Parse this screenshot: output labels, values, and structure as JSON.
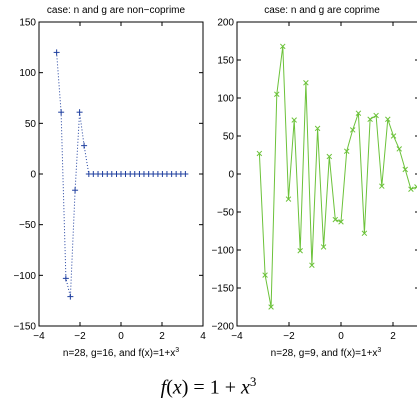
{
  "caption": {
    "fx": "f",
    "x1": "x",
    "rest": ") = 1 + ",
    "x2": "x",
    "exp": "3",
    "open": "("
  },
  "chart_data": [
    {
      "type": "scatter",
      "title": "case: n and g are non−coprime",
      "xlabel_main": "n=28, g=16, and f(x)=1+x",
      "xlabel_sup": "3",
      "xlim": [
        -4,
        4
      ],
      "ylim": [
        -150,
        150
      ],
      "xticks": [
        -4,
        -2,
        0,
        2,
        4
      ],
      "yticks": [
        -150,
        -100,
        -50,
        0,
        50,
        100,
        150
      ],
      "xtick_labels": [
        "−4",
        "−2",
        "0",
        "2",
        "4"
      ],
      "ytick_labels": [
        "−150",
        "−100",
        "−50",
        "0",
        "50",
        "100",
        "150"
      ],
      "marker": "+",
      "line_style": "dotted",
      "color": "#1f3f9f",
      "x": [
        -3.14,
        -2.92,
        -2.69,
        -2.47,
        -2.24,
        -2.02,
        -1.8,
        -1.57,
        -1.35,
        -1.12,
        -0.9,
        -0.67,
        -0.45,
        -0.22,
        0.0,
        0.22,
        0.45,
        0.67,
        0.9,
        1.12,
        1.35,
        1.57,
        1.8,
        2.02,
        2.24,
        2.47,
        2.69,
        2.92,
        3.14
      ],
      "y": [
        120,
        61,
        -103,
        -121,
        -16,
        61,
        28,
        0,
        0,
        0,
        0,
        0,
        0,
        0,
        0,
        0,
        0,
        0,
        0,
        0,
        0,
        0,
        0,
        0,
        0,
        0,
        0,
        0,
        0
      ]
    },
    {
      "type": "line",
      "title": "case: n and g are coprime",
      "xlabel_main": "n=28, g=9, and f(x)=1+x",
      "xlabel_sup": "3",
      "xlim": [
        -4,
        3
      ],
      "ylim": [
        -200,
        200
      ],
      "xticks": [
        -4,
        -2,
        0,
        2
      ],
      "yticks": [
        -200,
        -150,
        -100,
        -50,
        0,
        50,
        100,
        150,
        200
      ],
      "xtick_labels": [
        "−4",
        "−2",
        "0",
        "2"
      ],
      "ytick_labels": [
        "−200",
        "−150",
        "−100",
        "−50",
        "0",
        "50",
        "100",
        "150",
        "200"
      ],
      "marker": "x",
      "line_style": "solid",
      "color": "#6cc23a",
      "x": [
        -3.14,
        -2.92,
        -2.69,
        -2.47,
        -2.24,
        -2.02,
        -1.8,
        -1.57,
        -1.35,
        -1.12,
        -0.9,
        -0.67,
        -0.45,
        -0.22,
        0.0,
        0.22,
        0.45,
        0.67,
        0.9,
        1.12,
        1.35,
        1.57,
        1.8,
        2.02,
        2.24,
        2.47,
        2.69,
        2.92
      ],
      "y": [
        27,
        -133,
        -175,
        105,
        168,
        -33,
        71,
        -101,
        120,
        -120,
        60,
        -96,
        23,
        -60,
        -63,
        30,
        58,
        80,
        -78,
        72,
        77,
        -16,
        72,
        50,
        33,
        6,
        -20,
        -17
      ]
    }
  ]
}
